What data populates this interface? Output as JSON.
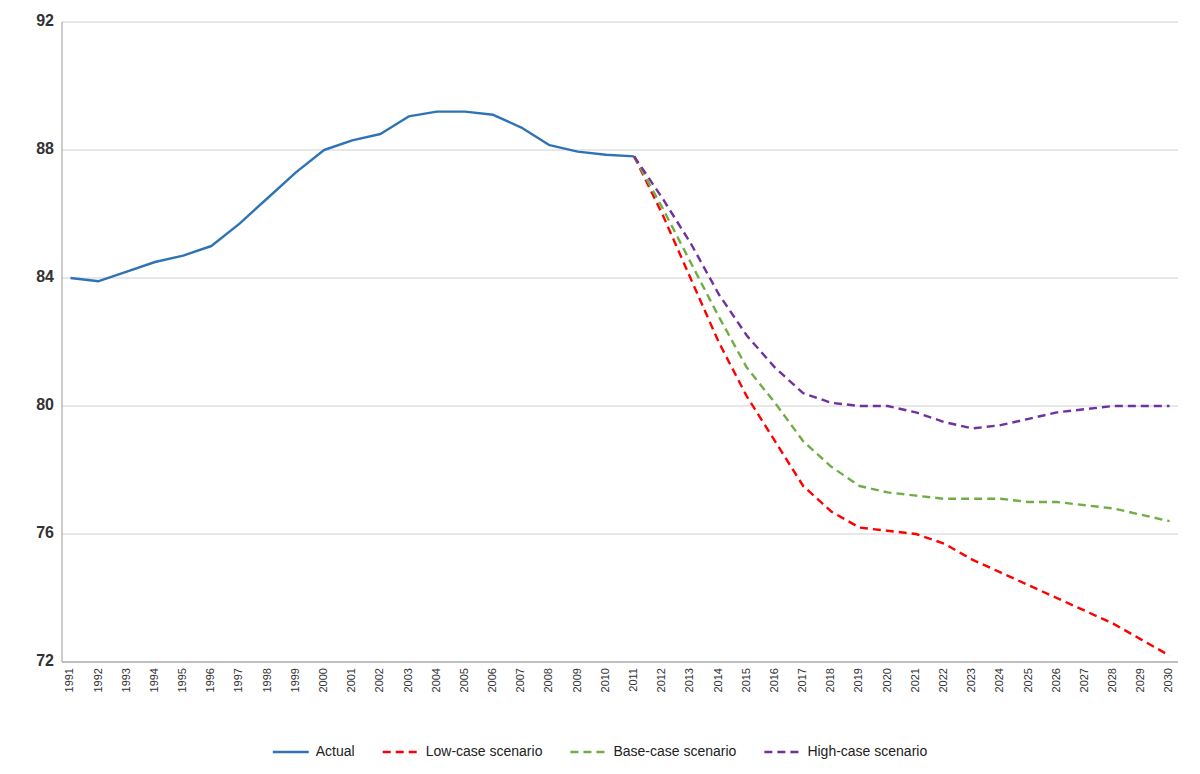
{
  "chart_data": {
    "type": "line",
    "x": [
      1991,
      1992,
      1993,
      1994,
      1995,
      1996,
      1997,
      1998,
      1999,
      2000,
      2001,
      2002,
      2003,
      2004,
      2005,
      2006,
      2007,
      2008,
      2009,
      2010,
      2011,
      2012,
      2013,
      2014,
      2015,
      2016,
      2017,
      2018,
      2019,
      2020,
      2021,
      2022,
      2023,
      2024,
      2025,
      2026,
      2027,
      2028,
      2029,
      2030
    ],
    "series": [
      {
        "name": "Actual",
        "color": "#2E74B5",
        "line_style": "solid",
        "values": [
          84.0,
          83.9,
          84.2,
          84.5,
          84.7,
          85.0,
          85.7,
          86.5,
          87.3,
          88.0,
          88.3,
          88.5,
          89.05,
          89.2,
          89.2,
          89.1,
          88.7,
          88.15,
          87.95,
          87.85,
          87.8,
          null,
          null,
          null,
          null,
          null,
          null,
          null,
          null,
          null,
          null,
          null,
          null,
          null,
          null,
          null,
          null,
          null,
          null,
          null
        ]
      },
      {
        "name": "Low-case scenario",
        "color": "#FF0000",
        "line_style": "dashed",
        "values": [
          null,
          null,
          null,
          null,
          null,
          null,
          null,
          null,
          null,
          null,
          null,
          null,
          null,
          null,
          null,
          null,
          null,
          null,
          null,
          null,
          87.8,
          86.0,
          84.0,
          82.0,
          80.3,
          78.9,
          77.5,
          76.7,
          76.2,
          76.1,
          76.0,
          75.7,
          75.2,
          74.8,
          74.4,
          74.0,
          73.6,
          73.2,
          72.7,
          72.2
        ]
      },
      {
        "name": "Base-case scenario",
        "color": "#70AD47",
        "line_style": "dashed",
        "values": [
          null,
          null,
          null,
          null,
          null,
          null,
          null,
          null,
          null,
          null,
          null,
          null,
          null,
          null,
          null,
          null,
          null,
          null,
          null,
          null,
          87.8,
          86.2,
          84.5,
          82.8,
          81.2,
          80.1,
          78.9,
          78.1,
          77.5,
          77.3,
          77.2,
          77.1,
          77.1,
          77.1,
          77.0,
          77.0,
          76.9,
          76.8,
          76.6,
          76.4
        ]
      },
      {
        "name": "High-case scenario",
        "color": "#7030A0",
        "line_style": "dashed",
        "values": [
          null,
          null,
          null,
          null,
          null,
          null,
          null,
          null,
          null,
          null,
          null,
          null,
          null,
          null,
          null,
          null,
          null,
          null,
          null,
          null,
          87.8,
          86.5,
          85.1,
          83.5,
          82.2,
          81.2,
          80.4,
          80.1,
          80.0,
          80.0,
          79.8,
          79.5,
          79.3,
          79.4,
          79.6,
          79.8,
          79.9,
          80.0,
          80.0,
          80.0
        ]
      }
    ],
    "xlim": [
      1990.7,
      2030.3
    ],
    "xticks": [
      1991,
      1992,
      1993,
      1994,
      1995,
      1996,
      1997,
      1998,
      1999,
      2000,
      2001,
      2002,
      2003,
      2004,
      2005,
      2006,
      2007,
      2008,
      2009,
      2010,
      2011,
      2012,
      2013,
      2014,
      2015,
      2016,
      2017,
      2018,
      2019,
      2020,
      2021,
      2022,
      2023,
      2024,
      2025,
      2026,
      2027,
      2028,
      2029,
      2030
    ],
    "ylim": [
      72,
      92
    ],
    "yticks": [
      72,
      76,
      80,
      84,
      88,
      92
    ],
    "grid": true,
    "legend": "bottom"
  }
}
